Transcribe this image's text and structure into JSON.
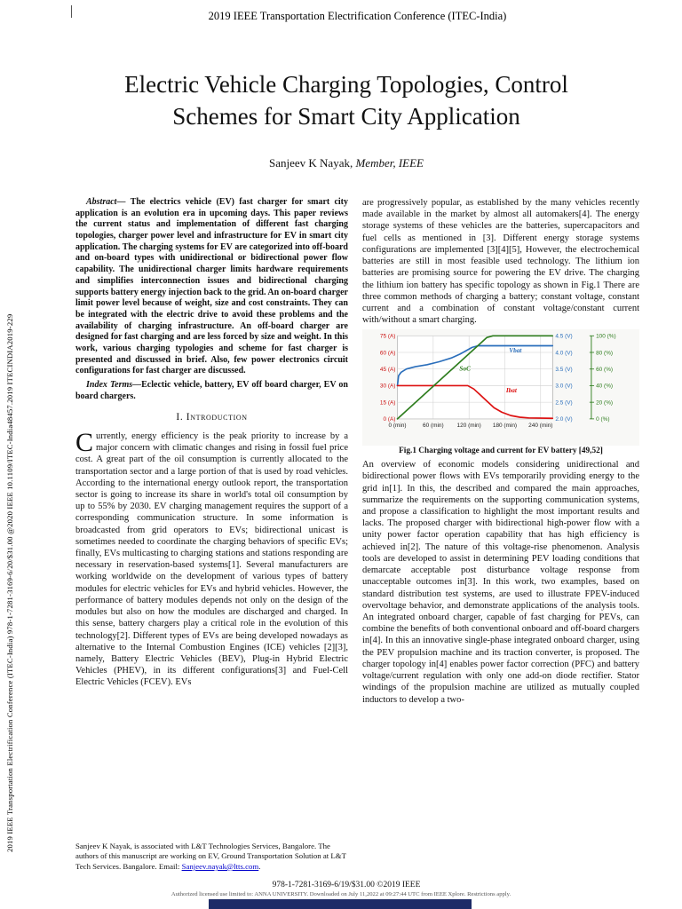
{
  "page": {
    "conference_header": "2019 IEEE Transportation Electrification Conference (ITEC-India)",
    "side_text": "2019 IEEE Transportation Electrification Conference (ITEC-India) 978-1-7281-3169-6/20/$31.00 @2020 IEEE 10.1109/ITEC-India48457.2019 ITECINDIA2019-229",
    "title_line1": "Electric Vehicle Charging Topologies, Control",
    "title_line2": "Schemes for Smart City Application",
    "author_name": "Sanjeev K Nayak, ",
    "author_role": "Member, IEEE"
  },
  "abstract": {
    "label": "Abstract— ",
    "text": "The electrics vehicle (EV) fast charger for smart city application is an evolution era in upcoming days. This paper reviews the current status and implementation of different fast charging topologies, charger power level and infrastructure for EV in smart city application. The charging systems for EV are categorized into off-board and on-board types with unidirectional or bidirectional power flow capability. The unidirectional charger limits hardware requirements and simplifies interconnection issues and bidirectional charging supports battery energy injection back to the grid. An on-board charger limit power level because of weight, size and cost constraints. They can be integrated with the electric drive to avoid these problems and the availability of charging infrastructure. An off-board charger are designed for fast charging and are less forced by size and weight. In this work, various charging typologies and scheme for fast charger is presented and discussed in brief. Also, few power electronics circuit configurations for fast charger are discussed."
  },
  "index_terms": {
    "label": "Index Terms—",
    "text": "Eclectic vehicle, battery, EV off board charger, EV on board chargers."
  },
  "sections": {
    "intro_heading": "I. Introduction"
  },
  "intro": {
    "dropcap": "C",
    "text": "urrently, energy efficiency is the peak priority to increase by a major concern with climatic changes and rising in fossil fuel price cost. A great part of the oil consumption is currently allocated to the transportation sector and a large portion of that is used by road vehicles. According to the international energy outlook report, the transportation sector is going to increase its share in world's total oil consumption by up to 55% by 2030. EV charging management requires the support of a corresponding communication structure. In some information is broadcasted from grid operators to EVs; bidirectional unicast is sometimes needed to coordinate the charging behaviors of specific EVs; finally, EVs multicasting to charging stations and stations responding are necessary in reservation-based systems[1]. Several manufacturers are working worldwide on the development of various types of battery modules for electric vehicles for EVs and hybrid vehicles. However, the performance of battery modules depends not only on the design of the modules but also on how the modules are discharged and charged. In this sense, battery chargers play a critical role in the evolution of this technology[2]. Different types of EVs are being developed nowadays as alternative to the Internal Combustion Engines (ICE) vehicles [2][3], namely, Battery Electric Vehicles (BEV), Plug-in Hybrid Electric Vehicles (PHEV), in its different configurations[3] and Fuel-Cell Electric Vehicles (FCEV). EVs"
  },
  "right_col": {
    "para1": "are progressively popular, as established by the many vehicles recently made available in the market by almost all automakers[4]. The energy storage systems of these vehicles are the batteries, supercapacitors and fuel cells as mentioned in [3]. Different energy storage systems configurations are implemented [3][4][5], However, the electrochemical batteries are still in most feasible used technology. The lithium ion batteries are promising source for powering the EV drive. The charging the lithium ion battery has specific topology as shown in Fig.1 There are three common methods of charging a battery; constant voltage, constant current and a combination of constant voltage/constant current with/without a smart charging.",
    "para2": "An overview of economic models considering unidirectional and bidirectional power flows with EVs temporarily providing energy to the grid in[1]. In this, the described and compared the main approaches, summarize the requirements on the supporting communication systems, and propose a classification to highlight the most important results and lacks. The proposed charger with bidirectional high-power flow with a unity power factor operation capability that has high efficiency is achieved in[2]. The nature of this voltage-rise phenomenon. Analysis tools are developed to assist in determining PEV loading conditions that demarcate acceptable post disturbance voltage response from unacceptable outcomes in[3]. In this work, two examples, based on standard distribution test systems, are used to illustrate FPEV-induced overvoltage behavior, and demonstrate applications of the analysis tools. An integrated onboard charger, capable of fast charging for PEVs, can combine the benefits of both conventional onboard and off-board chargers in[4]. In this an innovative single-phase integrated onboard charger, using the PEV propulsion machine and its traction converter, is proposed. The charger topology in[4] enables power factor correction (PFC) and battery voltage/current regulation with only one add-on diode rectifier. Stator windings of the propulsion machine are utilized as mutually coupled inductors to develop a two-"
  },
  "figure1": {
    "caption": "Fig.1 Charging voltage and current for EV battery [49,52]"
  },
  "chart_data": {
    "type": "line",
    "title": "Charging voltage and current for EV battery",
    "xlabel": "time (min)",
    "x_range": [
      0,
      260
    ],
    "x_tick_values": [
      0,
      60,
      120,
      180,
      240
    ],
    "x_tick_labels": [
      "0 (min)",
      "60 (min)",
      "120 (min)",
      "180 (min)",
      "240 (min)"
    ],
    "grid": true,
    "left_axis": {
      "name": "current",
      "color": "#cc1111",
      "range": [
        0,
        75
      ],
      "values": [
        0,
        15,
        30,
        45,
        60,
        75
      ],
      "labels": [
        "0 (A)",
        "15 (A)",
        "30 (A)",
        "45 (A)",
        "60 (A)",
        "75 (A)"
      ]
    },
    "right_axis_voltage": {
      "name": "voltage",
      "color": "#2a6ebb",
      "range": [
        2.0,
        4.5
      ],
      "values": [
        2.0,
        2.5,
        3.0,
        3.5,
        4.0,
        4.5
      ],
      "labels": [
        "2.0 (V)",
        "2.5 (V)",
        "3.0 (V)",
        "3.5 (V)",
        "4.0 (V)",
        "4.5 (V)"
      ]
    },
    "right_axis_soc": {
      "name": "soc",
      "color": "#2e7d1e",
      "range": [
        0,
        100
      ],
      "values": [
        0,
        20,
        40,
        60,
        80,
        100
      ],
      "labels": [
        "0 (%)",
        "20 (%)",
        "40 (%)",
        "60 (%)",
        "80 (%)",
        "100 (%)"
      ]
    },
    "series": [
      {
        "name": "Vbat",
        "axis": "voltage",
        "color": "#2a6ebb",
        "x": [
          0,
          2,
          6,
          15,
          30,
          50,
          70,
          90,
          105,
          115,
          125,
          135,
          150,
          260
        ],
        "y": [
          3.0,
          3.3,
          3.4,
          3.5,
          3.57,
          3.63,
          3.72,
          3.83,
          3.95,
          4.05,
          4.15,
          4.2,
          4.2,
          4.2
        ]
      },
      {
        "name": "Ibat",
        "axis": "current",
        "color": "#dd1111",
        "x": [
          0,
          118,
          128,
          138,
          150,
          162,
          175,
          190,
          205,
          220,
          260
        ],
        "y": [
          30,
          30,
          27,
          22,
          16,
          10,
          6,
          3,
          1.5,
          0.8,
          0.5
        ]
      },
      {
        "name": "SoC",
        "axis": "soc",
        "color": "#2e7d1e",
        "x": [
          0,
          150,
          160,
          260
        ],
        "y": [
          0,
          98,
          100,
          100
        ]
      }
    ],
    "annotations": [
      {
        "text": "SoC",
        "fx": 0.4,
        "fy": 0.42,
        "color": "#2e7d1e"
      },
      {
        "text": "Vbat",
        "fx": 0.72,
        "fy": 0.2,
        "color": "#2a6ebb"
      },
      {
        "text": "Ibat",
        "fx": 0.7,
        "fy": 0.68,
        "color": "#dd1111"
      }
    ]
  },
  "footnote": {
    "text": "Sanjeev K Nayak, is associated with L&T Technologies Services, Bangalore. The authors of this manuscript are working on EV, Ground Transportation Solution at L&T Tech Services. Bangalore. Email: ",
    "email": "Sanjeev.nayak@ltts.com",
    "period": "."
  },
  "footer": {
    "copyright": "978-1-7281-3169-6/19/$31.00 ©2019 IEEE",
    "license": "Authorized licensed use limited to: ANNA UNIVERSITY. Downloaded on July 11,2022 at 09:27:44 UTC from IEEE Xplore.  Restrictions apply."
  }
}
